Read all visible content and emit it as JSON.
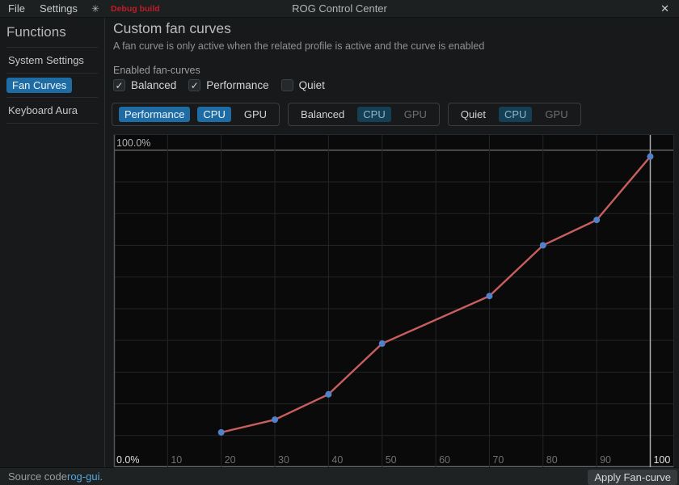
{
  "colors": {
    "accent_blue": "#1e6ca3",
    "inactive_selected_blue": "#153f55",
    "link_blue": "#58a6dc",
    "debug_red": "#c01c28"
  },
  "titlebar": {
    "menu_file": "File",
    "menu_settings": "Settings",
    "theme_toggle_icon": "✳",
    "debug_badge": "Debug build",
    "app_title": "ROG Control Center",
    "close_icon": "✕"
  },
  "sidebar": {
    "header": "Functions",
    "items": [
      {
        "label": "System Settings",
        "selected": false
      },
      {
        "label": "Fan Curves",
        "selected": true
      },
      {
        "label": "Keyboard Aura",
        "selected": false
      }
    ]
  },
  "content": {
    "heading": "Custom fan curves",
    "subtitle": "A fan curve is only active when the related profile is active and the curve is enabled",
    "enabled_section_label": "Enabled fan-curves",
    "check_glyph": "✓",
    "checkboxes": [
      {
        "label": "Balanced",
        "checked": true
      },
      {
        "label": "Performance",
        "checked": true
      },
      {
        "label": "Quiet",
        "checked": false
      }
    ],
    "profile_tabs": [
      {
        "profile": "Performance",
        "cpu_label": "CPU",
        "gpu_label": "GPU",
        "active": true
      },
      {
        "profile": "Balanced",
        "cpu_label": "CPU",
        "gpu_label": "GPU",
        "active": false
      },
      {
        "profile": "Quiet",
        "cpu_label": "CPU",
        "gpu_label": "GPU",
        "active": false
      }
    ]
  },
  "chart_data": {
    "type": "line",
    "x": [
      20,
      30,
      40,
      50,
      70,
      80,
      90,
      100
    ],
    "y": [
      11,
      15,
      23,
      39,
      54,
      70,
      78,
      98
    ],
    "x_ticks": [
      10,
      20,
      30,
      40,
      50,
      60,
      70,
      80,
      90,
      100
    ],
    "highlighted_x_tick": 100,
    "y_top_label": "100.0%",
    "y_bottom_label": "0.0%",
    "xlim": [
      0,
      104.3
    ],
    "ylim": [
      0,
      104.8
    ],
    "grid": true,
    "legend": "none",
    "line_color": "#c85f5f",
    "point_color": "#5181cd"
  },
  "footer": {
    "source_prefix": "Source code ",
    "source_link": "rog-gui.",
    "apply_button": "Apply Fan-curve"
  }
}
